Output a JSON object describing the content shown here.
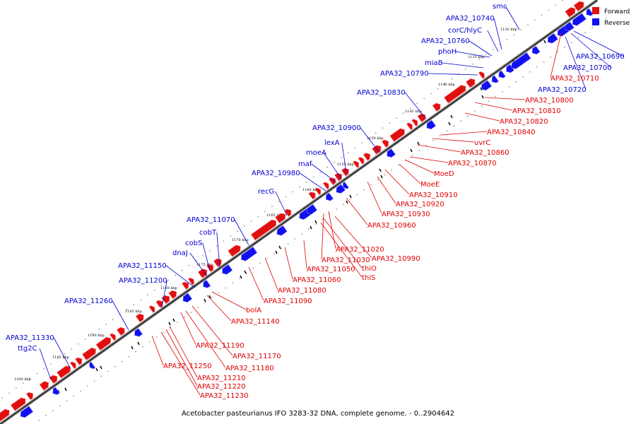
{
  "caption": "Acetobacter pasteurianus IFO 3283-32 DNA, complete genome. - 0..2904642",
  "legend": [
    {
      "label": "Forward",
      "color": "#e01010"
    },
    {
      "label": "Reverse",
      "color": "#1010f0"
    }
  ],
  "colors": {
    "forward": "#e01010",
    "reverse": "#1010f0",
    "backbone": "#888888"
  },
  "ticks": [
    "1130 kbp",
    "1135 kbp",
    "1140 kbp",
    "1145 kbp",
    "1150 kbp",
    "1155 kbp",
    "1160 kbp",
    "1165 kbp",
    "1170 kbp",
    "1175 kbp",
    "1180 kbp",
    "1185 kbp",
    "1190 kbp",
    "1195 kbp",
    "1200 kbp"
  ],
  "reverse_labels": [
    "smc",
    "APA32_10740",
    "corC/hlyC",
    "APA32_10760",
    "phoH",
    "miaB",
    "APA32_10790",
    "APA32_10830",
    "APA32_10900",
    "lexA",
    "moeA",
    "maf",
    "APA32_10980",
    "recG",
    "APA32_11070",
    "cobT",
    "cobS",
    "dnaJ",
    "APA32_11150",
    "APA32_11200",
    "APA32_11260",
    "APA32_11330",
    "ttg2C",
    "APA32_10690",
    "APA32_10700",
    "APA32_10720"
  ],
  "forward_labels": [
    "APA32_10710",
    "APA32_10800",
    "APA32_10810",
    "APA32_10820",
    "APA32_10840",
    "uvrC",
    "APA32_10860",
    "APA32_10870",
    "MoeD",
    "MoeE",
    "APA32_10910",
    "APA32_10920",
    "APA32_10930",
    "APA32_10960",
    "APA32_11020",
    "APA32_11030",
    "APA32_10990",
    "thiO",
    "APA32_11050",
    "thiS",
    "APA32_11060",
    "APA32_11080",
    "APA32_11090",
    "bolA",
    "APA32_11140",
    "APA32_11190",
    "APA32_11170",
    "APA32_11180",
    "APA32_11250",
    "APA32_11210",
    "APA32_11220",
    "APA32_11230"
  ]
}
